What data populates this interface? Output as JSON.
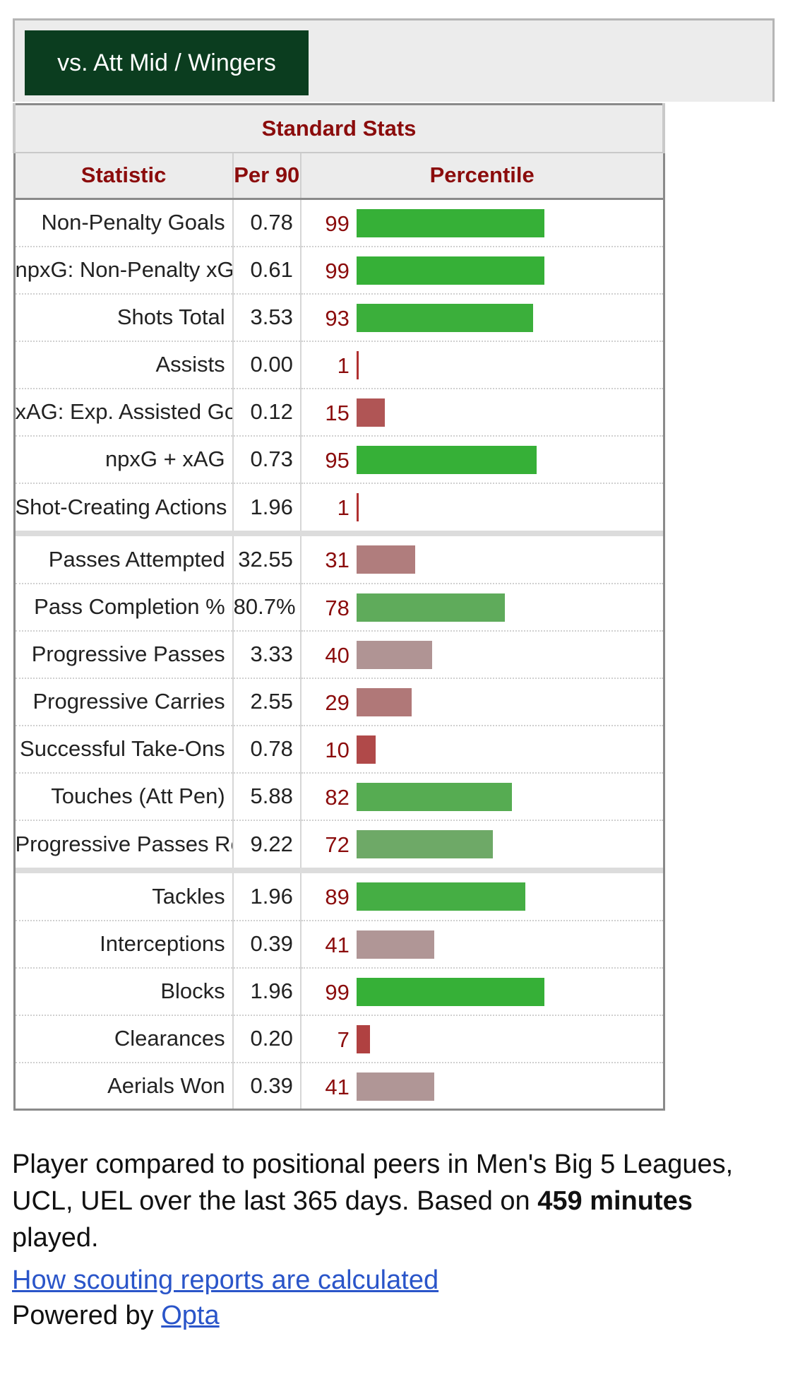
{
  "tab": {
    "active_label": "vs. Att Mid / Wingers"
  },
  "table": {
    "over_header": "Standard Stats",
    "headers": [
      "Statistic",
      "Per 90",
      "Percentile"
    ],
    "groups": [
      [
        {
          "stat": "Non-Penalty Goals",
          "per90": "0.78",
          "percentile": 99
        },
        {
          "stat": "npxG: Non-Penalty xG",
          "per90": "0.61",
          "percentile": 99
        },
        {
          "stat": "Shots Total",
          "per90": "3.53",
          "percentile": 93
        },
        {
          "stat": "Assists",
          "per90": "0.00",
          "percentile": 1
        },
        {
          "stat": "xAG: Exp. Assisted Goals",
          "per90": "0.12",
          "percentile": 15
        },
        {
          "stat": "npxG + xAG",
          "per90": "0.73",
          "percentile": 95
        },
        {
          "stat": "Shot-Creating Actions",
          "per90": "1.96",
          "percentile": 1
        }
      ],
      [
        {
          "stat": "Passes Attempted",
          "per90": "32.55",
          "percentile": 31
        },
        {
          "stat": "Pass Completion %",
          "per90": "80.7%",
          "percentile": 78
        },
        {
          "stat": "Progressive Passes",
          "per90": "3.33",
          "percentile": 40
        },
        {
          "stat": "Progressive Carries",
          "per90": "2.55",
          "percentile": 29
        },
        {
          "stat": "Successful Take-Ons",
          "per90": "0.78",
          "percentile": 10
        },
        {
          "stat": "Touches (Att Pen)",
          "per90": "5.88",
          "percentile": 82
        },
        {
          "stat": "Progressive Passes Rec",
          "per90": "9.22",
          "percentile": 72
        }
      ],
      [
        {
          "stat": "Tackles",
          "per90": "1.96",
          "percentile": 89
        },
        {
          "stat": "Interceptions",
          "per90": "0.39",
          "percentile": 41
        },
        {
          "stat": "Blocks",
          "per90": "1.96",
          "percentile": 99
        },
        {
          "stat": "Clearances",
          "per90": "0.20",
          "percentile": 7
        },
        {
          "stat": "Aerials Won",
          "per90": "0.39",
          "percentile": 41
        }
      ]
    ]
  },
  "footer": {
    "note_prefix": "Player compared to positional peers in Men's Big 5 Leagues, UCL, UEL over the last 365 days. Based on ",
    "note_bold": "459 minutes",
    "note_suffix": " played.",
    "how_link": "How scouting reports are calculated",
    "powered_prefix": "Powered by ",
    "powered_link": "Opta"
  },
  "colors": {
    "tab_bg": "#0b3d1f",
    "header_text": "#8b0c0c",
    "bar_high": "#36b037",
    "bar_low": "#b03030",
    "link": "#2a55c9"
  }
}
